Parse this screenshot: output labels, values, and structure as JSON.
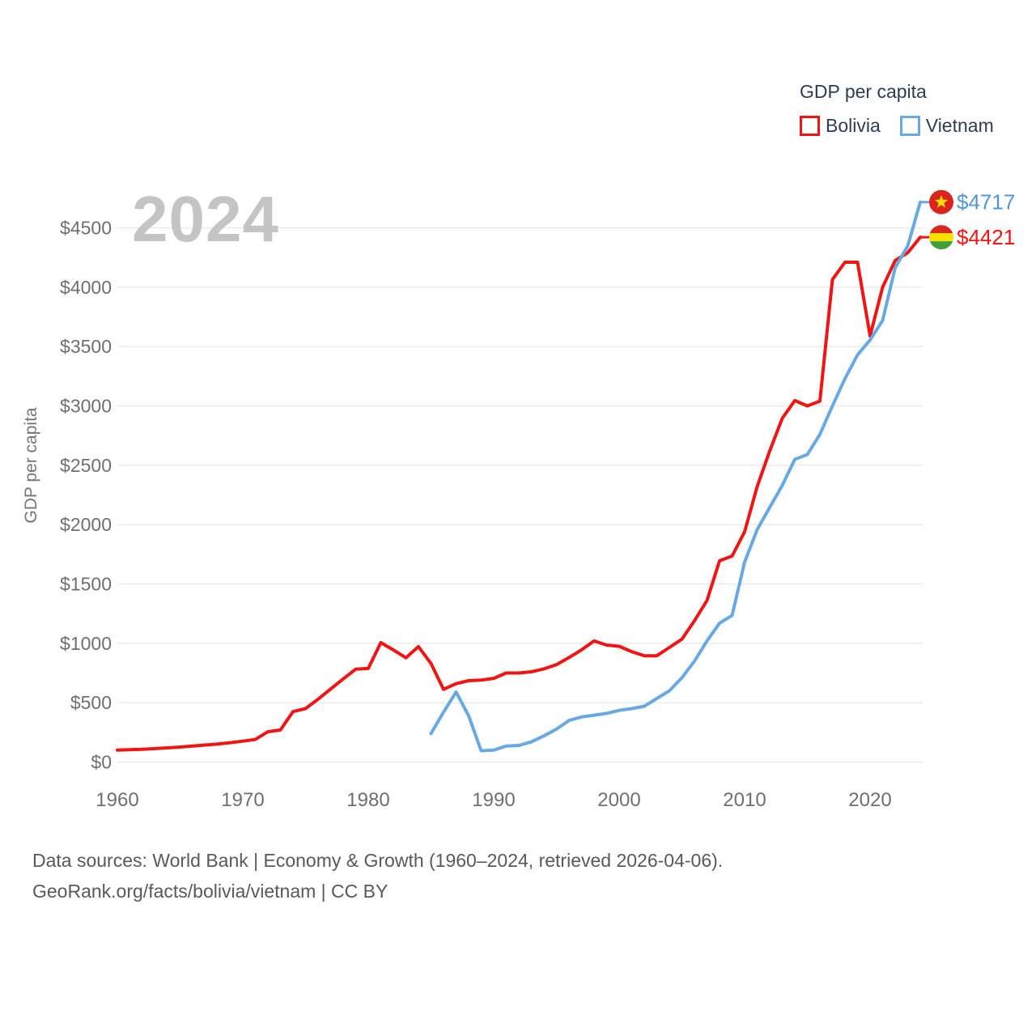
{
  "page": {
    "watermark": "2024",
    "footer": {
      "line1": "Data sources: World Bank | Economy & Growth (1960–2024, retrieved 2026-04-06).",
      "line2": "GeoRank.org/facts/bolivia/vietnam | CC BY"
    }
  },
  "legend": {
    "title": "GDP per capita",
    "items": [
      {
        "label": "Bolivia",
        "color": "#f01414"
      },
      {
        "label": "Vietnam",
        "color": "#68a9e3"
      }
    ]
  },
  "colors": {
    "bolivia_line": "#f01414",
    "vietnam_line": "#68a9e3",
    "vietnam_label_text": "#4f97d9",
    "bolivia_label_text": "#f01414",
    "grid": "#e9e9e9",
    "axis_text": "#6f6f6f",
    "legend_text": "#2e3d52",
    "watermark_text": "#c4c4c4",
    "footer_text": "#595959",
    "flag_vietnam_red": "#da251d",
    "flag_vietnam_star": "#ffde00",
    "flag_bolivia_red": "#d52b1e",
    "flag_bolivia_yellow": "#f7e000",
    "flag_bolivia_green": "#44a03c"
  },
  "chart_data": {
    "type": "line",
    "title": "GDP per capita",
    "xlabel": "",
    "ylabel": "GDP per capita",
    "xlim": [
      1960,
      2024
    ],
    "ylim": [
      0,
      4500
    ],
    "grid": true,
    "legend_position": "top-right",
    "x_ticks": {
      "values": [
        1960,
        1970,
        1980,
        1990,
        2000,
        2010,
        2020
      ],
      "labels": [
        "1960",
        "1970",
        "1980",
        "1990",
        "2000",
        "2010",
        "2020"
      ]
    },
    "y_ticks": {
      "values": [
        0,
        500,
        1000,
        1500,
        2000,
        2500,
        3000,
        3500,
        4000,
        4500
      ],
      "labels": [
        "$0",
        "$500",
        "$1000",
        "$1500",
        "$2000",
        "$2500",
        "$3000",
        "$3500",
        "$4000",
        "$4500"
      ]
    },
    "series": [
      {
        "name": "Bolivia",
        "color": "#f01414",
        "label_color": "#f01414",
        "flag": "bolivia",
        "end_label": "$4421",
        "end_value": 4421,
        "start_year": 1960,
        "values": [
          100,
          104,
          108,
          113,
          119,
          126,
          134,
          143,
          152,
          163,
          176,
          190,
          255,
          270,
          425,
          450,
          530,
          615,
          700,
          782,
          788,
          1006,
          944,
          878,
          972,
          830,
          612,
          660,
          685,
          690,
          705,
          750,
          750,
          760,
          785,
          820,
          880,
          945,
          1020,
          985,
          975,
          930,
          895,
          895,
          965,
          1035,
          1190,
          1360,
          1695,
          1735,
          1940,
          2320,
          2620,
          2895,
          3045,
          3000,
          3040,
          4065,
          4210,
          4210,
          3590,
          4000,
          4225,
          4290,
          4421
        ]
      },
      {
        "name": "Vietnam",
        "color": "#68a9e3",
        "label_color": "#4f97d9",
        "flag": "vietnam",
        "end_label": "$4717",
        "end_value": 4717,
        "start_year": 1985,
        "values": [
          240,
          420,
          590,
          390,
          95,
          100,
          135,
          140,
          170,
          220,
          277,
          350,
          380,
          395,
          410,
          435,
          450,
          470,
          535,
          600,
          710,
          850,
          1020,
          1170,
          1235,
          1684,
          1958,
          2145,
          2330,
          2550,
          2590,
          2760,
          3000,
          3230,
          3430,
          3555,
          3720,
          4164,
          4347,
          4717
        ]
      }
    ]
  }
}
